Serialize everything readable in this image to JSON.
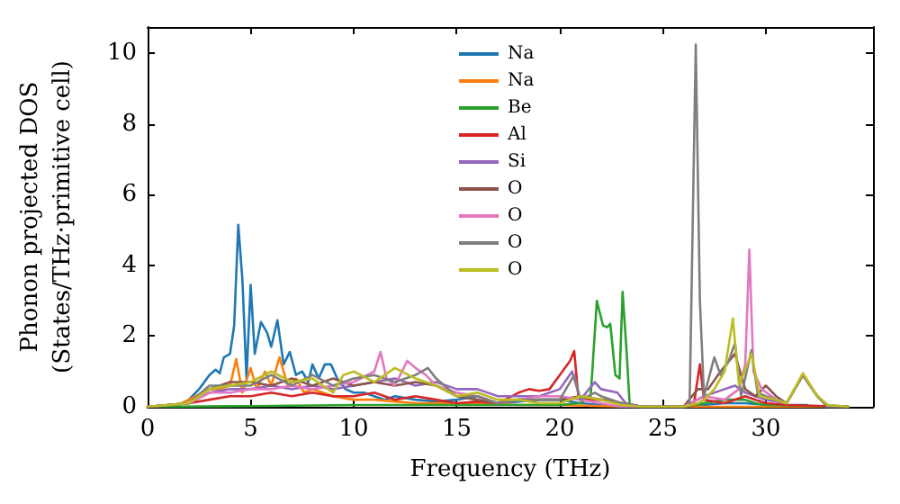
{
  "chart_data": {
    "type": "line",
    "xlabel": "Frequency (THz)",
    "ylabel": "Phonon projected DOS\n(States/THz·primitive cell)",
    "xlim": [
      0,
      35.2
    ],
    "xticks": [
      0,
      5,
      10,
      15,
      20,
      25,
      30
    ],
    "ylim": [
      0,
      10.75
    ],
    "yticks": [
      0,
      2,
      4,
      6,
      8,
      10
    ],
    "grid": false,
    "legend": "top",
    "line_style": "solid",
    "marker": "none",
    "series": [
      {
        "name": "Na",
        "color": "#1f77b4",
        "x": [
          1.5,
          2,
          2.5,
          3,
          3.3,
          3.5,
          3.7,
          4,
          4.2,
          4.4,
          4.6,
          4.8,
          5,
          5.2,
          5.5,
          5.8,
          6,
          6.3,
          6.6,
          6.9,
          7.2,
          7.5,
          7.8,
          8,
          8.3,
          8.6,
          8.9,
          9.2,
          9.6,
          10,
          10.5,
          11,
          11.5,
          12,
          13,
          14,
          15,
          16,
          17,
          18,
          19,
          20,
          21,
          22,
          23,
          26,
          27,
          28,
          29,
          30,
          32
        ],
        "values": [
          0.05,
          0.2,
          0.5,
          0.9,
          1.05,
          0.95,
          1.4,
          1.5,
          2.3,
          5.15,
          3.6,
          0.8,
          3.45,
          1.5,
          2.4,
          2.1,
          1.7,
          2.45,
          1.2,
          1.55,
          0.9,
          1,
          0.7,
          1.2,
          0.8,
          1.2,
          1.2,
          0.8,
          0.5,
          0.4,
          0.4,
          0.3,
          0.2,
          0.3,
          0.2,
          0.15,
          0.2,
          0.3,
          0.1,
          0.15,
          0.2,
          0.2,
          0.1,
          0.05,
          0,
          0,
          0.05,
          0.1,
          0.1,
          0.05,
          0.05
        ]
      },
      {
        "name": "Na",
        "color": "#ff7f0e",
        "x": [
          0,
          1.5,
          2,
          3,
          3.5,
          4,
          4.3,
          4.6,
          5,
          5.3,
          5.7,
          6,
          6.4,
          6.8,
          7.2,
          7.6,
          8,
          8.5,
          9,
          10,
          11,
          12,
          13,
          14,
          16,
          18,
          20,
          22,
          24,
          34
        ],
        "values": [
          0,
          0.05,
          0.2,
          0.5,
          0.5,
          0.6,
          1.35,
          0.4,
          1.1,
          0.5,
          1,
          0.6,
          1.4,
          0.6,
          0.8,
          0.4,
          0.5,
          0.4,
          0.3,
          0.2,
          0.2,
          0.15,
          0.1,
          0.1,
          0.1,
          0.05,
          0.05,
          0.02,
          0,
          0
        ]
      },
      {
        "name": "Be",
        "color": "#2ca02c",
        "x": [
          0,
          5,
          10,
          15,
          20,
          21,
          21.5,
          21.8,
          22.1,
          22.3,
          22.45,
          22.7,
          22.9,
          23.05,
          23.25,
          23.4,
          26,
          27,
          28,
          29,
          29.5,
          30,
          34
        ],
        "values": [
          0,
          0.02,
          0.05,
          0.05,
          0.05,
          0.1,
          0.3,
          3,
          2.3,
          2.25,
          2.35,
          0.9,
          0.8,
          3.25,
          1.5,
          0,
          0,
          0.1,
          0.2,
          0.2,
          0.1,
          0.05,
          0
        ]
      },
      {
        "name": "Al",
        "color": "#d62728",
        "x": [
          0,
          2,
          3,
          4,
          5,
          6,
          7,
          8,
          9,
          10,
          11,
          12,
          13,
          14,
          15,
          16,
          17,
          18,
          18.5,
          19,
          19.5,
          20,
          20.5,
          20.7,
          20.9,
          21.3,
          22,
          23,
          24,
          26,
          26.5,
          26.8,
          27,
          28,
          29,
          29.5,
          30,
          31,
          34
        ],
        "values": [
          0,
          0.1,
          0.2,
          0.3,
          0.3,
          0.4,
          0.3,
          0.4,
          0.3,
          0.3,
          0.4,
          0.2,
          0.3,
          0.2,
          0.1,
          0.15,
          0.1,
          0.4,
          0.5,
          0.45,
          0.5,
          0.9,
          1.3,
          1.58,
          0.3,
          0.2,
          0.2,
          0.1,
          0,
          0,
          0.05,
          1.2,
          0.2,
          0.1,
          0.3,
          0.2,
          0.1,
          0.05,
          0
        ]
      },
      {
        "name": "Si",
        "color": "#9467bd",
        "x": [
          0,
          2,
          3,
          4,
          5,
          6,
          7,
          8,
          9,
          10,
          11,
          12,
          13,
          14,
          15,
          16,
          17,
          18,
          19,
          20,
          20.6,
          21,
          21.7,
          22,
          22.8,
          23.2,
          24,
          26,
          27,
          28,
          28.5,
          29,
          29.5,
          30,
          31,
          31.8,
          32.5,
          33,
          34
        ],
        "values": [
          0,
          0.1,
          0.4,
          0.5,
          0.5,
          0.6,
          0.5,
          0.6,
          0.5,
          0.6,
          0.7,
          0.8,
          0.6,
          0.7,
          0.5,
          0.5,
          0.3,
          0.3,
          0.3,
          0.5,
          1,
          0.2,
          0.7,
          0.5,
          0.4,
          0.1,
          0,
          0,
          0.3,
          0.5,
          0.6,
          0.4,
          0.3,
          0.2,
          0.1,
          0.9,
          0.3,
          0.05,
          0
        ]
      },
      {
        "name": "O",
        "color": "#8c564b",
        "x": [
          0,
          2,
          3,
          4,
          5,
          6,
          7,
          8,
          9,
          10,
          11,
          12,
          13,
          14,
          15,
          16,
          17,
          18,
          19,
          20,
          21,
          22,
          23,
          24,
          26,
          26.7,
          27.2,
          27.8,
          28.5,
          29,
          29.5,
          30,
          30.5,
          31,
          31.8,
          32.5,
          33,
          34
        ],
        "values": [
          0,
          0.1,
          0.5,
          0.7,
          0.7,
          0.6,
          0.8,
          0.6,
          0.8,
          0.6,
          0.7,
          0.6,
          0.7,
          0.6,
          0.3,
          0.2,
          0.1,
          0.2,
          0.2,
          0.2,
          0.3,
          0.2,
          0.1,
          0,
          0,
          0.5,
          0.5,
          1,
          1.5,
          0.5,
          0.3,
          0.6,
          0.3,
          0.1,
          0.9,
          0.3,
          0,
          0
        ]
      },
      {
        "name": "O",
        "color": "#e377c2",
        "x": [
          0,
          2,
          3,
          4,
          5,
          6,
          7,
          8,
          9,
          10,
          11,
          11.3,
          11.6,
          12,
          12.6,
          13,
          13.5,
          14,
          15,
          16,
          17,
          18,
          19,
          20,
          21,
          22,
          23,
          26,
          27,
          28,
          28.7,
          29,
          29.2,
          29.4,
          29.8,
          30.5,
          31,
          31.8,
          32.5,
          33,
          34
        ],
        "values": [
          0,
          0.1,
          0.4,
          0.4,
          0.5,
          0.5,
          0.6,
          0.5,
          0.6,
          0.7,
          1,
          1.55,
          0.8,
          0.6,
          1.3,
          1.1,
          0.9,
          0.6,
          0.4,
          0.3,
          0.1,
          0.2,
          0.3,
          0.3,
          0.2,
          0.1,
          0,
          0,
          0.3,
          0.2,
          0.5,
          1.2,
          4.45,
          1,
          0.5,
          0.2,
          0.1,
          0.9,
          0.3,
          0,
          0
        ]
      },
      {
        "name": "O",
        "color": "#7f7f7f",
        "x": [
          0,
          2,
          3,
          4,
          5,
          6,
          7,
          8,
          9,
          10,
          11,
          12,
          13,
          13.6,
          14,
          15,
          16,
          17,
          18,
          19,
          20,
          20.7,
          21,
          21.7,
          22,
          23,
          24,
          26.3,
          26.6,
          26.8,
          27,
          27.5,
          27.8,
          28.2,
          28.5,
          28.8,
          29.3,
          29.6,
          30,
          31,
          31.8,
          32.5,
          33,
          34
        ],
        "values": [
          0,
          0.1,
          0.6,
          0.6,
          0.6,
          0.9,
          0.6,
          0.9,
          0.6,
          0.8,
          0.9,
          0.7,
          0.9,
          1.1,
          0.8,
          0.3,
          0.3,
          0.1,
          0.2,
          0.2,
          0.2,
          0.9,
          0.2,
          0.4,
          0.3,
          0.1,
          0,
          0,
          10.25,
          3,
          0.3,
          1.4,
          0.9,
          1.3,
          1.8,
          0.3,
          1.6,
          0.4,
          0.3,
          0.1,
          0.9,
          0.3,
          0,
          0
        ]
      },
      {
        "name": "O",
        "color": "#bcbd22",
        "x": [
          0,
          2,
          3,
          4,
          5,
          6,
          7,
          8,
          9,
          9.5,
          10,
          11,
          12,
          13,
          14,
          15,
          16,
          17,
          18,
          19,
          20,
          21,
          22,
          23,
          24,
          26,
          26.7,
          27,
          27.5,
          28,
          28.4,
          28.7,
          29.3,
          29.7,
          30.5,
          31,
          31.8,
          32.5,
          33,
          34
        ],
        "values": [
          0,
          0.1,
          0.5,
          0.6,
          0.7,
          1,
          0.7,
          0.8,
          0.4,
          0.9,
          1,
          0.7,
          1.1,
          0.8,
          0.6,
          0.3,
          0.4,
          0.2,
          0.2,
          0.1,
          0.1,
          0.3,
          0.2,
          0.05,
          0,
          0,
          0.1,
          0.2,
          0.5,
          1,
          2.5,
          0.6,
          1.5,
          0.3,
          0.2,
          0.1,
          0.95,
          0.3,
          0.05,
          0
        ]
      }
    ]
  }
}
